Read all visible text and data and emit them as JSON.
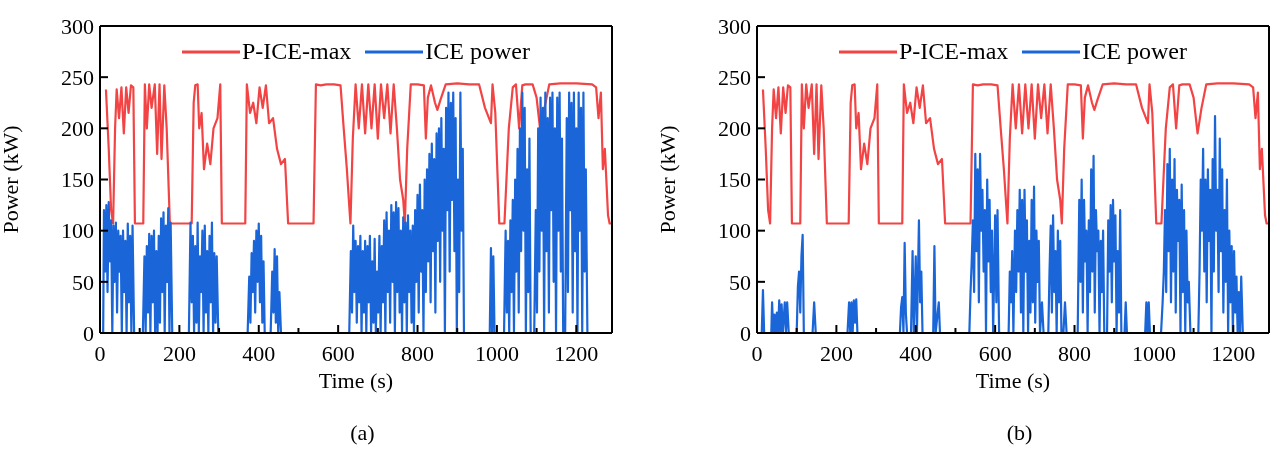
{
  "chart_data": [
    {
      "type": "line",
      "xlabel": "Time (s)",
      "ylabel": "Power (kW)",
      "annotations": [
        "(a)"
      ],
      "legend": "top",
      "xlim": [
        0,
        1290
      ],
      "ylim": [
        0,
        300
      ],
      "xticks": [
        0,
        {
          "value": 100,
          "label": null
        },
        200,
        {
          "value": 300,
          "label": null
        },
        400,
        {
          "value": 500,
          "label": null
        },
        600,
        {
          "value": 700,
          "label": null
        },
        800,
        {
          "value": 900,
          "label": null
        },
        1000,
        {
          "value": 1100,
          "label": null
        },
        1200
      ],
      "yticks": [
        0,
        50,
        100,
        150,
        200,
        250,
        300
      ],
      "series": [
        {
          "name": "P-ICE-max",
          "color": "#f24444",
          "x": [
            15,
            22,
            28,
            33,
            38,
            42,
            48,
            54,
            60,
            66,
            72,
            78,
            84,
            88,
            109,
            113,
            118,
            124,
            130,
            138,
            144,
            150,
            155,
            162,
            168,
            176,
            231,
            236,
            240,
            246,
            250,
            256,
            262,
            270,
            278,
            286,
            296,
            303,
            307,
            366,
            370,
            378,
            386,
            394,
            402,
            410,
            418,
            426,
            436,
            446,
            456,
            466,
            474,
            538,
            544,
            556,
            570,
            590,
            606,
            614,
            622,
            627,
            631,
            637,
            644,
            652,
            660,
            668,
            676,
            684,
            692,
            700,
            708,
            716,
            724,
            732,
            740,
            748,
            756,
            764,
            768,
            774,
            783,
            800,
            816,
            821,
            826,
            834,
            844,
            850,
            858,
            871,
            900,
            930,
            955,
            970,
            985,
            989,
            996,
            1002,
            1006,
            1019,
            1030,
            1040,
            1048,
            1056,
            1064,
            1072,
            1090,
            1100,
            1110,
            1120,
            1132,
            1160,
            1200,
            1240,
            1250,
            1256,
            1262,
            1267,
            1272,
            1280,
            1284,
            1290
          ],
          "values": [
            238,
            180,
            120,
            107,
            200,
            238,
            210,
            240,
            195,
            240,
            215,
            242,
            240,
            107,
            107,
            243,
            200,
            243,
            220,
            243,
            175,
            243,
            170,
            242,
            200,
            107,
            107,
            225,
            242,
            243,
            200,
            215,
            160,
            185,
            165,
            200,
            210,
            243,
            107,
            107,
            243,
            215,
            225,
            205,
            240,
            220,
            242,
            205,
            210,
            180,
            165,
            170,
            107,
            107,
            243,
            242,
            243,
            243,
            242,
            200,
            160,
            130,
            107,
            190,
            243,
            200,
            243,
            195,
            243,
            200,
            243,
            190,
            243,
            210,
            243,
            195,
            243,
            200,
            150,
            130,
            107,
            180,
            243,
            243,
            242,
            190,
            230,
            242,
            225,
            218,
            228,
            243,
            244,
            243,
            243,
            220,
            205,
            243,
            215,
            150,
            107,
            107,
            200,
            240,
            243,
            200,
            242,
            243,
            243,
            230,
            195,
            220,
            243,
            244,
            244,
            243,
            240,
            210,
            235,
            160,
            180,
            115,
            107,
            107
          ]
        },
        {
          "name": "ICE power",
          "color": "#1a66d9",
          "x": [
            0,
            8,
            10,
            13,
            16,
            19,
            22,
            25,
            28,
            31,
            34,
            37,
            40,
            43,
            46,
            49,
            52,
            55,
            58,
            61,
            64,
            67,
            70,
            73,
            76,
            79,
            82,
            86,
            108,
            112,
            115,
            118,
            121,
            124,
            127,
            130,
            133,
            136,
            139,
            142,
            145,
            148,
            151,
            154,
            157,
            160,
            163,
            166,
            169,
            172,
            175,
            178,
            182,
            224,
            228,
            231,
            234,
            237,
            240,
            243,
            246,
            249,
            252,
            255,
            258,
            261,
            264,
            267,
            270,
            273,
            276,
            279,
            282,
            285,
            288,
            291,
            294,
            298,
            372,
            376,
            379,
            382,
            385,
            388,
            391,
            394,
            397,
            400,
            403,
            406,
            409,
            412,
            415,
            430,
            434,
            437,
            440,
            443,
            446,
            449,
            452,
            456,
            628,
            632,
            635,
            638,
            641,
            644,
            647,
            650,
            653,
            656,
            659,
            662,
            665,
            668,
            671,
            674,
            677,
            680,
            683,
            686,
            689,
            692,
            695,
            698,
            701,
            704,
            707,
            710,
            713,
            716,
            719,
            722,
            725,
            728,
            731,
            734,
            737,
            740,
            743,
            746,
            749,
            752,
            755,
            758,
            761,
            764,
            767,
            770,
            773,
            776,
            779,
            782,
            785,
            788,
            791,
            794,
            797,
            800,
            803,
            806,
            809,
            812,
            815,
            818,
            821,
            824,
            827,
            830,
            833,
            836,
            839,
            842,
            845,
            848,
            851,
            854,
            857,
            860,
            863,
            866,
            869,
            872,
            875,
            878,
            881,
            884,
            887,
            890,
            893,
            896,
            899,
            902,
            905,
            908,
            911,
            914,
            917,
            921,
            982,
            985,
            988,
            991,
            994,
            1018,
            1022,
            1025,
            1028,
            1031,
            1034,
            1037,
            1040,
            1043,
            1046,
            1049,
            1052,
            1055,
            1058,
            1061,
            1064,
            1067,
            1070,
            1073,
            1076,
            1079,
            1082,
            1085,
            1094,
            1098,
            1101,
            1104,
            1107,
            1110,
            1113,
            1116,
            1119,
            1122,
            1125,
            1128,
            1131,
            1134,
            1137,
            1140,
            1143,
            1146,
            1149,
            1152,
            1155,
            1158,
            1161,
            1164,
            1167,
            1172,
            1176,
            1179,
            1182,
            1185,
            1188,
            1191,
            1194,
            1197,
            1200,
            1203,
            1206,
            1209,
            1212,
            1215,
            1218,
            1221,
            1224,
            1228,
            1290
          ],
          "values": [
            0,
            0,
            120,
            60,
            125,
            40,
            128,
            70,
            110,
            0,
            105,
            50,
            108,
            20,
            100,
            60,
            95,
            0,
            100,
            40,
            90,
            0,
            107,
            30,
            95,
            0,
            105,
            0,
            0,
            75,
            0,
            85,
            20,
            97,
            0,
            95,
            30,
            100,
            0,
            80,
            0,
            95,
            10,
            112,
            40,
            118,
            0,
            105,
            50,
            122,
            0,
            108,
            0,
            0,
            108,
            30,
            95,
            0,
            85,
            10,
            108,
            0,
            75,
            40,
            100,
            0,
            105,
            20,
            80,
            0,
            95,
            30,
            108,
            0,
            78,
            10,
            75,
            0,
            0,
            55,
            10,
            78,
            40,
            90,
            20,
            100,
            50,
            107,
            30,
            95,
            10,
            70,
            0,
            0,
            60,
            20,
            82,
            10,
            75,
            0,
            40,
            0,
            0,
            80,
            20,
            105,
            40,
            90,
            10,
            85,
            30,
            95,
            0,
            80,
            20,
            90,
            0,
            85,
            30,
            95,
            0,
            70,
            10,
            92,
            0,
            60,
            20,
            95,
            0,
            85,
            30,
            110,
            0,
            118,
            40,
            100,
            10,
            125,
            50,
            118,
            0,
            128,
            40,
            122,
            20,
            100,
            0,
            113,
            30,
            108,
            0,
            115,
            40,
            100,
            10,
            105,
            0,
            120,
            50,
            135,
            20,
            145,
            60,
            120,
            0,
            150,
            40,
            160,
            70,
            175,
            30,
            185,
            80,
            170,
            20,
            195,
            90,
            200,
            50,
            210,
            100,
            180,
            0,
            220,
            120,
            235,
            60,
            225,
            130,
            235,
            80,
            210,
            0,
            150,
            40,
            235,
            100,
            180,
            0,
            0,
            0,
            83,
            0,
            75,
            0,
            0,
            100,
            20,
            90,
            0,
            110,
            40,
            130,
            0,
            150,
            60,
            180,
            20,
            200,
            80,
            235,
            100,
            220,
            0,
            160,
            40,
            190,
            0,
            0,
            120,
            20,
            200,
            60,
            230,
            100,
            220,
            0,
            235,
            80,
            210,
            20,
            230,
            120,
            235,
            50,
            200,
            0,
            230,
            100,
            235,
            60,
            190,
            0,
            0,
            210,
            40,
            235,
            120,
            225,
            20,
            235,
            80,
            200,
            0,
            235,
            100,
            220,
            0,
            235,
            60,
            160,
            0,
            0
          ]
        }
      ]
    },
    {
      "type": "line",
      "xlabel": "Time (s)",
      "ylabel": "Power (kW)",
      "annotations": [
        "(b)"
      ],
      "legend": "top",
      "xlim": [
        0,
        1290
      ],
      "ylim": [
        0,
        300
      ],
      "xticks": [
        0,
        {
          "value": 100,
          "label": null
        },
        200,
        {
          "value": 300,
          "label": null
        },
        400,
        {
          "value": 500,
          "label": null
        },
        600,
        {
          "value": 700,
          "label": null
        },
        800,
        {
          "value": 900,
          "label": null
        },
        1000,
        {
          "value": 1100,
          "label": null
        },
        1200
      ],
      "yticks": [
        0,
        50,
        100,
        150,
        200,
        250,
        300
      ],
      "series": [
        {
          "name": "P-ICE-max",
          "color": "#f24444",
          "x": [
            15,
            22,
            28,
            33,
            38,
            42,
            48,
            54,
            60,
            66,
            72,
            78,
            84,
            88,
            109,
            113,
            118,
            124,
            130,
            138,
            144,
            150,
            155,
            162,
            168,
            176,
            231,
            236,
            240,
            246,
            250,
            256,
            262,
            270,
            278,
            286,
            296,
            303,
            307,
            366,
            370,
            378,
            386,
            394,
            402,
            410,
            418,
            426,
            436,
            446,
            456,
            466,
            474,
            538,
            544,
            556,
            570,
            590,
            606,
            614,
            622,
            627,
            631,
            637,
            644,
            652,
            660,
            668,
            676,
            684,
            692,
            700,
            708,
            716,
            724,
            732,
            740,
            748,
            756,
            764,
            768,
            774,
            783,
            800,
            816,
            821,
            826,
            834,
            844,
            850,
            858,
            871,
            900,
            930,
            955,
            970,
            985,
            989,
            996,
            1002,
            1006,
            1019,
            1030,
            1040,
            1048,
            1056,
            1064,
            1072,
            1090,
            1100,
            1110,
            1120,
            1132,
            1160,
            1200,
            1240,
            1250,
            1256,
            1262,
            1267,
            1272,
            1280,
            1284,
            1290
          ],
          "values": [
            238,
            180,
            120,
            107,
            200,
            238,
            210,
            240,
            195,
            240,
            215,
            242,
            240,
            107,
            107,
            243,
            200,
            243,
            220,
            243,
            175,
            243,
            170,
            242,
            200,
            107,
            107,
            225,
            242,
            243,
            200,
            215,
            160,
            185,
            165,
            200,
            210,
            243,
            107,
            107,
            243,
            215,
            225,
            205,
            240,
            220,
            242,
            205,
            210,
            180,
            165,
            170,
            107,
            107,
            243,
            242,
            243,
            243,
            242,
            200,
            160,
            130,
            107,
            190,
            243,
            200,
            243,
            195,
            243,
            200,
            243,
            190,
            243,
            210,
            243,
            195,
            243,
            200,
            150,
            130,
            107,
            180,
            243,
            243,
            242,
            190,
            230,
            242,
            225,
            218,
            228,
            243,
            244,
            243,
            243,
            220,
            205,
            243,
            215,
            150,
            107,
            107,
            200,
            240,
            243,
            200,
            242,
            243,
            243,
            230,
            195,
            220,
            243,
            244,
            244,
            243,
            240,
            210,
            235,
            160,
            180,
            115,
            107,
            107
          ]
        },
        {
          "name": "ICE power",
          "color": "#1a66d9",
          "x": [
            0,
            12,
            15,
            18,
            36,
            38,
            41,
            44,
            47,
            50,
            53,
            56,
            59,
            62,
            65,
            70,
            73,
            76,
            80,
            100,
            103,
            106,
            109,
            112,
            115,
            118,
            140,
            144,
            148,
            228,
            232,
            235,
            238,
            241,
            244,
            247,
            250,
            253,
            262,
            360,
            363,
            366,
            369,
            372,
            375,
            378,
            388,
            392,
            395,
            400,
            403,
            408,
            411,
            414,
            417,
            444,
            447,
            450,
            458,
            461,
            535,
            538,
            541,
            544,
            547,
            550,
            553,
            556,
            559,
            562,
            565,
            568,
            571,
            574,
            577,
            580,
            583,
            586,
            589,
            592,
            595,
            600,
            603,
            606,
            610,
            634,
            637,
            640,
            643,
            646,
            650,
            653,
            656,
            659,
            662,
            665,
            668,
            671,
            674,
            677,
            680,
            683,
            686,
            689,
            692,
            695,
            698,
            701,
            704,
            707,
            710,
            713,
            718,
            722,
            734,
            737,
            740,
            743,
            746,
            749,
            752,
            755,
            758,
            761,
            764,
            767,
            772,
            776,
            780,
            808,
            812,
            815,
            818,
            821,
            824,
            827,
            830,
            833,
            836,
            839,
            842,
            845,
            848,
            851,
            854,
            857,
            860,
            863,
            866,
            869,
            872,
            875,
            882,
            885,
            888,
            891,
            894,
            897,
            900,
            903,
            906,
            909,
            912,
            915,
            918,
            926,
            929,
            932,
            978,
            981,
            984,
            987,
            990,
            1018,
            1022,
            1025,
            1028,
            1031,
            1034,
            1037,
            1040,
            1043,
            1046,
            1049,
            1052,
            1055,
            1058,
            1061,
            1064,
            1067,
            1070,
            1073,
            1076,
            1079,
            1082,
            1085,
            1088,
            1092,
            1112,
            1115,
            1118,
            1121,
            1124,
            1127,
            1130,
            1133,
            1136,
            1139,
            1142,
            1145,
            1148,
            1151,
            1154,
            1157,
            1160,
            1163,
            1166,
            1169,
            1172,
            1175,
            1178,
            1181,
            1184,
            1187,
            1190,
            1193,
            1196,
            1199,
            1202,
            1205,
            1208,
            1211,
            1214,
            1217,
            1220,
            1224,
            1290
          ],
          "values": [
            0,
            0,
            42,
            0,
            0,
            30,
            0,
            18,
            0,
            20,
            0,
            32,
            0,
            28,
            0,
            30,
            0,
            30,
            0,
            0,
            45,
            60,
            20,
            75,
            96,
            0,
            0,
            30,
            0,
            0,
            30,
            0,
            30,
            0,
            32,
            10,
            33,
            0,
            0,
            0,
            25,
            35,
            0,
            88,
            20,
            0,
            0,
            80,
            0,
            75,
            0,
            110,
            30,
            60,
            0,
            0,
            85,
            0,
            30,
            0,
            0,
            40,
            70,
            110,
            40,
            175,
            80,
            160,
            30,
            175,
            100,
            140,
            60,
            120,
            0,
            150,
            70,
            130,
            40,
            100,
            0,
            115,
            30,
            120,
            0,
            0,
            60,
            30,
            80,
            0,
            100,
            40,
            120,
            60,
            140,
            20,
            130,
            0,
            140,
            60,
            110,
            0,
            90,
            20,
            130,
            30,
            143,
            10,
            100,
            50,
            90,
            0,
            30,
            0,
            0,
            60,
            105,
            20,
            115,
            40,
            80,
            0,
            100,
            30,
            90,
            0,
            0,
            30,
            0,
            0,
            130,
            50,
            150,
            20,
            130,
            70,
            100,
            0,
            110,
            40,
            160,
            60,
            173,
            20,
            120,
            80,
            100,
            0,
            90,
            40,
            100,
            0,
            0,
            110,
            60,
            125,
            30,
            130,
            70,
            115,
            0,
            80,
            20,
            120,
            0,
            0,
            30,
            0,
            0,
            30,
            0,
            30,
            0,
            0,
            30,
            60,
            120,
            40,
            165,
            80,
            180,
            30,
            150,
            60,
            170,
            20,
            140,
            90,
            130,
            0,
            145,
            40,
            120,
            0,
            100,
            30,
            50,
            0,
            0,
            60,
            150,
            100,
            180,
            60,
            150,
            30,
            160,
            90,
            140,
            0,
            170,
            60,
            212,
            100,
            140,
            40,
            190,
            80,
            160,
            20,
            120,
            50,
            150,
            0,
            100,
            30,
            85,
            0,
            80,
            20,
            55,
            0,
            40,
            0,
            55,
            0,
            0
          ]
        }
      ]
    }
  ]
}
